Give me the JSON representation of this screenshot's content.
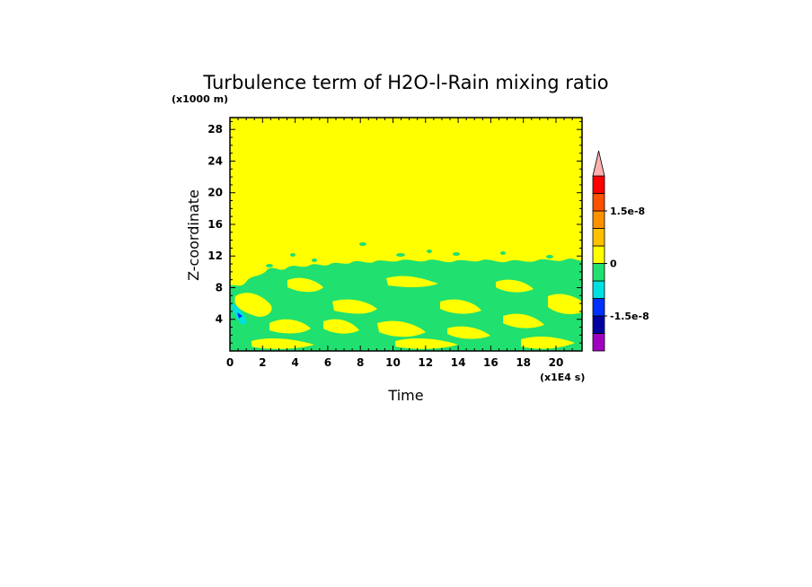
{
  "chart_data": {
    "type": "heatmap",
    "title": "Turbulence term of H2O-l-Rain mixing ratio",
    "xlabel": "Time",
    "ylabel": "Z-coordinate",
    "x_unit": "(x1E4 s)",
    "y_unit": "(x1000 m)",
    "xlim": [
      0,
      21.6
    ],
    "ylim": [
      0,
      29.5
    ],
    "x_ticks": [
      "0",
      "2",
      "4",
      "6",
      "8",
      "10",
      "12",
      "14",
      "16",
      "18",
      "20"
    ],
    "y_ticks": [
      "4",
      "8",
      "12",
      "16",
      "20",
      "24",
      "28"
    ],
    "colorbar": {
      "levels": [
        "-2.25e-8",
        "-1.5e-8",
        "-0.75e-8",
        "0",
        "0.75e-8",
        "1.5e-8",
        "2.25e-8"
      ],
      "labels": [
        "1.5e-8",
        "0",
        "-1.5e-8"
      ],
      "colors": [
        "#a000c0",
        "#0000a0",
        "#0030ff",
        "#00e0e0",
        "#20e070",
        "#ffff00",
        "#ffc000",
        "#ff9000",
        "#ff5000",
        "#ff0000",
        "#ffb0b0"
      ],
      "extend": "max"
    },
    "dominant_value": "0 to 0.75e-8 (yellow) above ~12 km",
    "features": [
      {
        "name": "green band",
        "value": "-0.75e-8 to 0",
        "z_range": [
          0,
          12
        ]
      },
      {
        "name": "cyan patch",
        "value": "-1.5e-8 to -0.75e-8",
        "time": 0.7,
        "z": 4.8
      },
      {
        "name": "blue patch",
        "value": "-2.25e-8 to -1.5e-8",
        "time": 0.6,
        "z": 4.6
      }
    ]
  }
}
